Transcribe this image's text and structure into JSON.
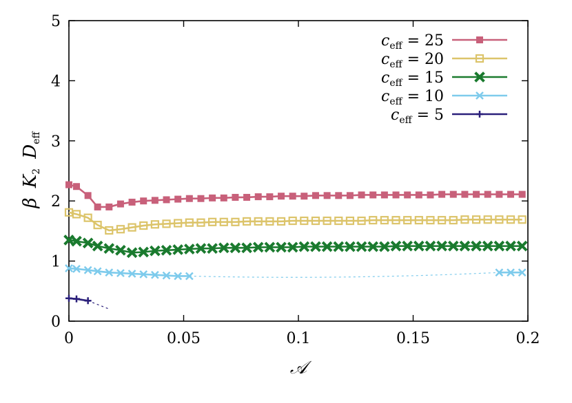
{
  "chart_data": {
    "type": "line",
    "title": "",
    "xlabel": "𝒜",
    "ylabel": "β K₂ D_eff",
    "xlim": [
      0,
      0.2
    ],
    "ylim": [
      0,
      5
    ],
    "xticks": [
      0,
      0.05,
      0.1,
      0.15,
      0.2
    ],
    "xtick_labels": [
      "0",
      "0.05",
      "0.1",
      "0.15",
      "0.2"
    ],
    "yticks": [
      0,
      1,
      2,
      3,
      4,
      5
    ],
    "ytick_labels": [
      "0",
      "1",
      "2",
      "3",
      "4",
      "5"
    ],
    "grid": false,
    "legend_position": "top-right",
    "series": [
      {
        "name": "c_eff = 25",
        "label_main": "c",
        "label_sub": "eff",
        "label_rest": " = 25",
        "color": "#c8607a",
        "marker": "filled-square",
        "x": [
          0,
          0.0033,
          0.0083,
          0.0125,
          0.0175,
          0.0225,
          0.0275,
          0.0325,
          0.0375,
          0.0425,
          0.0475,
          0.0525,
          0.0575,
          0.0625,
          0.0675,
          0.0725,
          0.0775,
          0.0825,
          0.0875,
          0.0925,
          0.0975,
          0.1025,
          0.1075,
          0.1125,
          0.1175,
          0.1225,
          0.1275,
          0.1325,
          0.1375,
          0.1425,
          0.1475,
          0.1525,
          0.1575,
          0.1625,
          0.1675,
          0.1725,
          0.1775,
          0.1825,
          0.1875,
          0.1925,
          0.1975
        ],
        "y": [
          2.27,
          2.24,
          2.09,
          1.9,
          1.9,
          1.95,
          1.98,
          2.0,
          2.01,
          2.02,
          2.03,
          2.04,
          2.04,
          2.05,
          2.05,
          2.06,
          2.06,
          2.07,
          2.07,
          2.08,
          2.08,
          2.08,
          2.09,
          2.09,
          2.09,
          2.09,
          2.1,
          2.1,
          2.1,
          2.1,
          2.1,
          2.1,
          2.1,
          2.11,
          2.11,
          2.11,
          2.11,
          2.11,
          2.11,
          2.11,
          2.11
        ]
      },
      {
        "name": "c_eff = 20",
        "label_main": "c",
        "label_sub": "eff",
        "label_rest": " = 20",
        "color": "#dcc46a",
        "marker": "open-square",
        "x": [
          0,
          0.0033,
          0.0083,
          0.0125,
          0.0175,
          0.0225,
          0.0275,
          0.0325,
          0.0375,
          0.0425,
          0.0475,
          0.0525,
          0.0575,
          0.0625,
          0.0675,
          0.0725,
          0.0775,
          0.0825,
          0.0875,
          0.0925,
          0.0975,
          0.1025,
          0.1075,
          0.1125,
          0.1175,
          0.1225,
          0.1275,
          0.1325,
          0.1375,
          0.1425,
          0.1475,
          0.1525,
          0.1575,
          0.1625,
          0.1675,
          0.1725,
          0.1775,
          0.1825,
          0.1875,
          0.1925,
          0.1975
        ],
        "y": [
          1.81,
          1.78,
          1.72,
          1.6,
          1.51,
          1.53,
          1.56,
          1.59,
          1.61,
          1.62,
          1.63,
          1.64,
          1.64,
          1.65,
          1.65,
          1.65,
          1.66,
          1.66,
          1.66,
          1.66,
          1.67,
          1.67,
          1.67,
          1.67,
          1.67,
          1.67,
          1.67,
          1.68,
          1.68,
          1.68,
          1.68,
          1.68,
          1.68,
          1.68,
          1.68,
          1.69,
          1.69,
          1.69,
          1.69,
          1.69,
          1.69
        ]
      },
      {
        "name": "c_eff = 15",
        "label_main": "c",
        "label_sub": "eff",
        "label_rest": " = 15",
        "color": "#1a7a2e",
        "marker": "filled-x",
        "x": [
          0,
          0.0033,
          0.0083,
          0.0125,
          0.0175,
          0.0225,
          0.0275,
          0.0325,
          0.0375,
          0.0425,
          0.0475,
          0.0525,
          0.0575,
          0.0625,
          0.0675,
          0.0725,
          0.0775,
          0.0825,
          0.0875,
          0.0925,
          0.0975,
          0.1025,
          0.1075,
          0.1125,
          0.1175,
          0.1225,
          0.1275,
          0.1325,
          0.1375,
          0.1425,
          0.1475,
          0.1525,
          0.1575,
          0.1625,
          0.1675,
          0.1725,
          0.1775,
          0.1825,
          0.1875,
          0.1925,
          0.1975
        ],
        "y": [
          1.35,
          1.33,
          1.3,
          1.25,
          1.21,
          1.18,
          1.14,
          1.15,
          1.17,
          1.18,
          1.19,
          1.2,
          1.21,
          1.21,
          1.22,
          1.22,
          1.22,
          1.23,
          1.23,
          1.23,
          1.23,
          1.24,
          1.24,
          1.24,
          1.24,
          1.24,
          1.24,
          1.24,
          1.24,
          1.25,
          1.25,
          1.25,
          1.25,
          1.25,
          1.25,
          1.25,
          1.25,
          1.25,
          1.25,
          1.25,
          1.25
        ]
      },
      {
        "name": "c_eff = 10",
        "label_main": "c",
        "label_sub": "eff",
        "label_rest": " = 10",
        "color": "#7ecbec",
        "marker": "x",
        "x": [
          0,
          0.0033,
          0.0083,
          0.0125,
          0.0175,
          0.0225,
          0.0275,
          0.0325,
          0.0375,
          0.0425,
          0.0475,
          0.0525,
          0.1875,
          0.1925,
          0.1975
        ],
        "y": [
          0.88,
          0.87,
          0.85,
          0.83,
          0.81,
          0.8,
          0.79,
          0.78,
          0.77,
          0.76,
          0.75,
          0.75,
          0.81,
          0.81,
          0.81
        ],
        "dashed_gap": true
      },
      {
        "name": "c_eff = 5",
        "label_main": "c",
        "label_sub": "eff",
        "label_rest": " = 5",
        "color": "#2a1f7a",
        "marker": "plus",
        "x": [
          0,
          0.0033,
          0.0083
        ],
        "y": [
          0.38,
          0.37,
          0.34
        ],
        "dashed_tail": [
          [
            0.0083,
            0.34
          ],
          [
            0.017,
            0.21
          ]
        ]
      }
    ]
  }
}
